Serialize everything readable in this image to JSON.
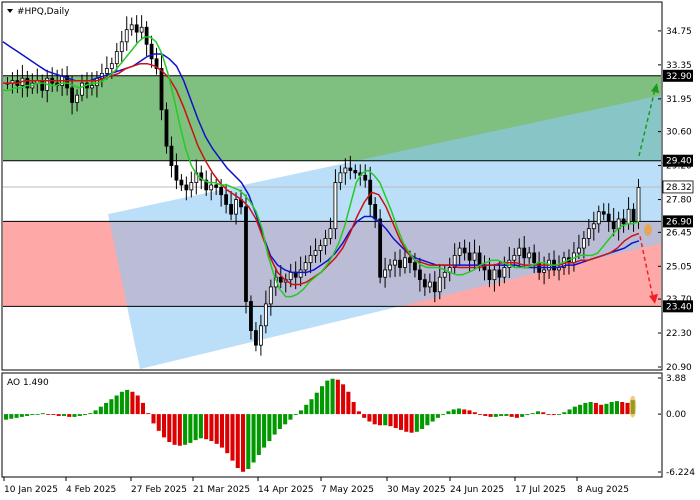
{
  "header": {
    "symbol": "#HPQ,Daily",
    "indicator": "AO 1.490"
  },
  "colors": {
    "green_zone": "#7fbf7f",
    "red_zone": "#ffa8a8",
    "channel": "#8ec9f5",
    "bull": "#009900",
    "bear": "#dd0000",
    "ma_fast": "#22cc22",
    "ma_mid": "#cc1111",
    "ma_slow": "#1111cc",
    "candle": "#000000",
    "forecast_up": "#1a9a1a",
    "forecast_down": "#ee2222",
    "marker": "#f0a030"
  },
  "chart_data": [
    {
      "type": "candlestick",
      "title": "#HPQ,Daily",
      "ylim": [
        20.9,
        36.2
      ],
      "y_ticks": [
        34.75,
        33.35,
        31.95,
        30.6,
        29.2,
        27.8,
        26.45,
        25.05,
        23.7,
        22.3,
        20.9
      ],
      "x_ticks": [
        "10 Jan 2025",
        "4 Feb 2025",
        "27 Feb 2025",
        "21 Mar 2025",
        "14 Apr 2025",
        "7 May 2025",
        "30 May 2025",
        "24 Jun 2025",
        "17 Jul 2025",
        "8 Aug 2025"
      ],
      "levels": [
        {
          "value": 32.9,
          "label": "32.90"
        },
        {
          "value": 29.4,
          "label": "29.40"
        },
        {
          "value": 28.32,
          "label": "28.32"
        },
        {
          "value": 26.9,
          "label": "26.90"
        },
        {
          "value": 23.4,
          "label": "23.40"
        }
      ],
      "zones": [
        {
          "name": "resistance",
          "from": 29.4,
          "to": 32.9
        },
        {
          "name": "support",
          "from": 23.4,
          "to": 26.9
        }
      ],
      "channel": {
        "lower_start": 20.9,
        "lower_end": 26.0,
        "upper_start": 27.2,
        "upper_end": 32.1
      },
      "forecast": {
        "pivot": 26.45,
        "up_target": 32.6,
        "down_target": 23.5
      },
      "close": [
        32.6,
        32.7,
        32.5,
        32.8,
        32.4,
        32.6,
        32.7,
        32.3,
        32.8,
        32.6,
        32.5,
        32.9,
        32.4,
        31.8,
        32.1,
        32.6,
        32.4,
        32.5,
        32.8,
        33.0,
        33.2,
        33.4,
        33.9,
        34.3,
        34.8,
        35.0,
        34.7,
        34.9,
        34.2,
        33.6,
        33.2,
        31.5,
        30.0,
        29.2,
        28.6,
        28.4,
        28.2,
        28.5,
        28.9,
        28.6,
        28.2,
        28.4,
        28.3,
        28.0,
        27.6,
        27.2,
        27.8,
        27.5,
        23.6,
        22.4,
        21.8,
        22.6,
        23.5,
        24.2,
        24.6,
        24.4,
        24.5,
        24.8,
        24.6,
        24.9,
        25.2,
        25.5,
        25.7,
        25.9,
        26.2,
        26.6,
        28.5,
        28.9,
        29.1,
        29.0,
        28.9,
        28.8,
        28.6,
        27.6,
        27.0,
        24.6,
        24.9,
        25.1,
        25.3,
        25.0,
        25.4,
        25.2,
        24.9,
        24.5,
        24.2,
        24.4,
        24.0,
        24.6,
        24.8,
        25.0,
        25.5,
        25.8,
        25.6,
        25.3,
        25.6,
        25.1,
        24.9,
        24.5,
        24.9,
        24.6,
        25.0,
        25.3,
        25.5,
        25.8,
        25.4,
        25.6,
        25.2,
        24.8,
        24.9,
        25.3,
        24.9,
        25.0,
        25.4,
        25.2,
        25.6,
        25.8,
        26.2,
        26.6,
        26.8,
        27.3,
        27.2,
        26.9,
        26.6,
        27.0,
        26.8,
        27.4,
        26.9,
        28.3
      ],
      "ma_fast": [
        32.3,
        32.3,
        32.4,
        32.4,
        32.5,
        32.5,
        32.6,
        32.6,
        32.5,
        32.5,
        32.6,
        32.6,
        32.5,
        32.4,
        32.5,
        32.6,
        32.6,
        32.7,
        32.9,
        33.1,
        33.4,
        33.7,
        34.0,
        34.3,
        34.5,
        34.5,
        34.3,
        33.8,
        33.0,
        32.0,
        30.9,
        29.9,
        29.2,
        28.8,
        28.6,
        28.5,
        28.5,
        28.4,
        28.4,
        28.3,
        28.2,
        28.0,
        27.7,
        27.3,
        26.6,
        25.5,
        24.7,
        24.1,
        23.8,
        23.8,
        23.9,
        24.1,
        24.4,
        24.6,
        24.8,
        25.1,
        25.5,
        26.0,
        26.7,
        27.6,
        28.5,
        28.9,
        29.0,
        28.8,
        28.5,
        27.9,
        27.3,
        26.6,
        26.0,
        25.6,
        25.3,
        25.1,
        25.0,
        25.0,
        25.0,
        24.9,
        24.8,
        24.7,
        24.7,
        24.8,
        24.9,
        25.1,
        25.2,
        25.3,
        25.3,
        25.2,
        25.1,
        25.0,
        25.0,
        25.0,
        25.1,
        25.2,
        25.2,
        25.1,
        25.1,
        25.2,
        25.3,
        25.4,
        25.5,
        25.5,
        25.5,
        25.6,
        25.9,
        26.2,
        26.5,
        26.7,
        26.8,
        26.8,
        26.9
      ],
      "ma_mid": [
        32.6,
        32.6,
        32.6,
        32.7,
        32.7,
        32.7,
        32.7,
        32.7,
        32.7,
        32.7,
        32.7,
        32.7,
        32.7,
        32.7,
        32.8,
        32.9,
        33.0,
        33.2,
        33.3,
        33.4,
        33.4,
        33.3,
        33.1,
        32.8,
        32.3,
        31.6,
        30.8,
        30.0,
        29.4,
        28.9,
        28.5,
        28.2,
        28.0,
        27.8,
        27.5,
        27.0,
        26.2,
        25.4,
        24.8,
        24.5,
        24.3,
        24.3,
        24.4,
        24.6,
        24.8,
        25.1,
        25.4,
        25.8,
        26.4,
        27.1,
        27.7,
        28.1,
        28.0,
        27.5,
        26.8,
        26.1,
        25.6,
        25.3,
        25.2,
        25.1,
        25.1,
        25.1,
        25.1,
        25.0,
        25.0,
        25.0,
        25.0,
        25.1,
        25.1,
        25.2,
        25.2,
        25.2,
        25.1,
        25.1,
        25.1,
        25.1,
        25.1,
        25.1,
        25.2,
        25.2,
        25.3,
        25.3,
        25.4,
        25.5,
        25.6,
        25.8,
        26.1,
        26.3,
        26.4
      ],
      "ma_slow": [
        34.3,
        34.1,
        33.9,
        33.7,
        33.5,
        33.3,
        33.1,
        33.0,
        32.9,
        32.8,
        32.7,
        32.7,
        32.7,
        32.8,
        32.9,
        33.0,
        33.1,
        33.2,
        33.3,
        33.5,
        33.7,
        33.8,
        33.8,
        33.6,
        33.3,
        32.7,
        31.9,
        31.1,
        30.4,
        29.9,
        29.5,
        29.1,
        28.8,
        28.5,
        28.0,
        27.2,
        26.3,
        25.5,
        25.1,
        24.9,
        24.8,
        24.8,
        24.8,
        24.9,
        25.1,
        25.3,
        25.6,
        26.0,
        26.5,
        26.9,
        27.1,
        27.1,
        26.9,
        26.6,
        26.2,
        25.9,
        25.6,
        25.4,
        25.3,
        25.2,
        25.1,
        25.1,
        25.1,
        25.1,
        25.1,
        25.1,
        25.1,
        25.1,
        25.1,
        25.1,
        25.1,
        25.1,
        25.0,
        25.0,
        25.0,
        25.0,
        25.0,
        25.0,
        25.1,
        25.1,
        25.2,
        25.3,
        25.4,
        25.5,
        25.6,
        25.7,
        25.8,
        26.0,
        26.1
      ]
    },
    {
      "type": "bar",
      "title": "AO 1.490",
      "ylim": [
        -6.224,
        3.88
      ],
      "y_ticks": [
        "3.88",
        "0.00",
        "-6.224"
      ],
      "values": [
        -0.6,
        -0.5,
        -0.4,
        -0.3,
        -0.2,
        -0.1,
        0.0,
        0.1,
        0.0,
        -0.1,
        -0.2,
        -0.2,
        -0.3,
        -0.3,
        -0.2,
        -0.1,
        0.1,
        0.4,
        0.8,
        1.2,
        1.6,
        2.0,
        2.4,
        2.6,
        2.4,
        2.0,
        1.2,
        0.1,
        -1.0,
        -1.8,
        -2.5,
        -3.0,
        -3.3,
        -3.4,
        -3.3,
        -3.1,
        -2.8,
        -2.6,
        -2.7,
        -2.9,
        -3.2,
        -3.6,
        -4.2,
        -5.0,
        -5.8,
        -6.2,
        -5.9,
        -5.2,
        -4.4,
        -3.6,
        -2.9,
        -2.2,
        -1.6,
        -1.1,
        -0.6,
        -0.1,
        0.4,
        1.0,
        1.6,
        2.3,
        3.0,
        3.6,
        3.8,
        3.7,
        3.2,
        2.4,
        1.3,
        0.3,
        -0.4,
        -0.8,
        -1.1,
        -1.2,
        -1.2,
        -1.3,
        -1.5,
        -1.7,
        -1.9,
        -2.0,
        -1.9,
        -1.6,
        -1.2,
        -0.8,
        -0.4,
        0.0,
        0.3,
        0.5,
        0.6,
        0.5,
        0.4,
        0.2,
        0.0,
        -0.2,
        -0.3,
        -0.3,
        -0.2,
        -0.2,
        -0.3,
        -0.4,
        -0.3,
        -0.1,
        0.1,
        0.3,
        0.2,
        0.0,
        -0.1,
        0.0,
        0.2,
        0.5,
        0.8,
        1.0,
        1.2,
        1.3,
        1.2,
        1.0,
        1.1,
        1.3,
        1.4,
        1.3,
        1.2,
        1.5
      ]
    }
  ],
  "time_axis_labels": [
    "10 Jan 2025",
    "4 Feb 2025",
    "27 Feb 2025",
    "21 Mar 2025",
    "14 Apr 2025",
    "7 May 2025",
    "30 May 2025",
    "24 Jun 2025",
    "17 Jul 2025",
    "8 Aug 2025"
  ]
}
